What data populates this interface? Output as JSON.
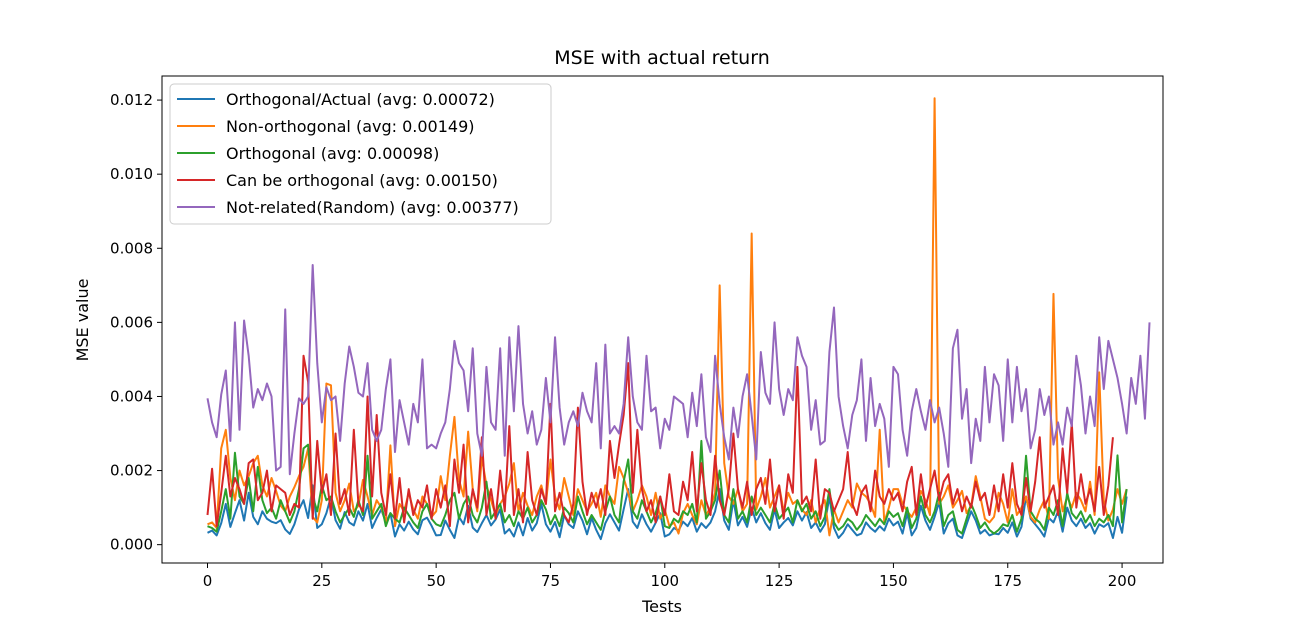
{
  "chart_data": {
    "type": "line",
    "title": "MSE with actual return",
    "xlabel": "Tests",
    "ylabel": "MSE value",
    "xlim": [
      -9.95,
      208.95
    ],
    "ylim": [
      -0.000495,
      0.01265
    ],
    "xticks": [
      0,
      25,
      50,
      75,
      100,
      125,
      150,
      175,
      200
    ],
    "xtick_labels": [
      "0",
      "25",
      "50",
      "75",
      "100",
      "125",
      "150",
      "175",
      "200"
    ],
    "yticks": [
      0,
      0.002,
      0.004,
      0.006,
      0.008,
      0.01,
      0.012
    ],
    "ytick_labels": [
      "0.000",
      "0.002",
      "0.004",
      "0.006",
      "0.008",
      "0.010",
      "0.012"
    ],
    "grid": false,
    "legend_position": "upper-left",
    "series": [
      {
        "name": "Orthogonal/Actual (avg: 0.00072)",
        "color": "#1f77b4",
        "values": [
          0.00032,
          0.00038,
          0.00025,
          0.00058,
          0.0011,
          0.00048,
          0.00085,
          0.0012,
          0.00065,
          0.0014,
          0.00075,
          0.00055,
          0.0009,
          0.0007,
          0.00062,
          0.00058,
          0.00066,
          0.00041,
          0.00029,
          0.00055,
          0.00095,
          0.0012,
          0.00072,
          0.0016,
          0.00045,
          0.00055,
          0.00085,
          0.0013,
          0.00066,
          0.00043,
          0.00088,
          0.0006,
          0.00052,
          0.0009,
          0.00065,
          0.0011,
          0.00045,
          0.00072,
          0.00095,
          0.0006,
          0.00085,
          0.00022,
          0.00055,
          0.00038,
          0.00062,
          0.00041,
          0.00028,
          0.00066,
          0.00073,
          0.00051,
          0.00025,
          0.00026,
          0.00065,
          0.0004,
          0.00018,
          0.00075,
          0.00055,
          0.00105,
          0.00046,
          0.00034,
          0.00058,
          0.0008,
          0.00052,
          0.00068,
          0.00095,
          0.0003,
          0.00042,
          0.00022,
          0.0006,
          0.00025,
          0.00072,
          0.00038,
          0.00058,
          0.0011,
          0.00055,
          0.00035,
          0.00061,
          0.0002,
          0.0008,
          0.00055,
          0.00045,
          0.0009,
          0.00065,
          0.00028,
          0.00072,
          0.0004,
          0.00015,
          0.00058,
          0.00082,
          0.0006,
          0.00038,
          0.00095,
          0.0015,
          0.00062,
          0.00045,
          0.00082,
          0.00055,
          0.00035,
          0.00059,
          0.00085,
          0.00022,
          0.00028,
          0.00045,
          0.00038,
          0.00062,
          0.0005,
          0.00072,
          0.00035,
          0.00058,
          0.00045,
          0.0006,
          0.0009,
          0.0015,
          0.00065,
          0.0004,
          0.0012,
          0.00052,
          0.00075,
          0.00048,
          0.001,
          0.0006,
          0.00085,
          0.00058,
          0.0004,
          0.00095,
          0.00045,
          0.0006,
          0.00072,
          0.00052,
          0.0009,
          0.00065,
          0.00088,
          0.00045,
          0.0006,
          0.00035,
          0.00055,
          0.0013,
          0.00045,
          0.00018,
          0.00032,
          0.00055,
          0.0004,
          0.00025,
          0.0003,
          0.0006,
          0.00045,
          0.00035,
          0.0005,
          0.00038,
          0.0007,
          0.00052,
          0.00062,
          0.0003,
          0.00085,
          0.00025,
          0.00045,
          0.00105,
          0.00065,
          0.0004,
          0.00075,
          0.00115,
          0.0003,
          0.00058,
          0.0007,
          0.00025,
          0.00018,
          0.00055,
          0.0009,
          0.00065,
          0.0003,
          0.0004,
          0.00025,
          0.0003,
          0.00028,
          0.00045,
          0.00032,
          0.0006,
          0.00022,
          0.00048,
          0.0013,
          0.0007,
          0.00055,
          0.0004,
          0.00022,
          0.00072,
          0.0006,
          0.0009,
          0.00035,
          0.001,
          0.00065,
          0.0005,
          0.0007,
          0.00045,
          0.00058,
          0.0003,
          0.00055,
          0.00048,
          0.00058,
          0.00018,
          0.00075,
          0.00032,
          0.0013
        ]
      },
      {
        "name": "Non-orthogonal (avg: 0.00149)",
        "color": "#ff7f0e",
        "values": [
          0.00055,
          0.0006,
          0.00045,
          0.0026,
          0.0031,
          0.0018,
          0.0012,
          0.002,
          0.0016,
          0.00185,
          0.0022,
          0.0024,
          0.0016,
          0.0013,
          0.0018,
          0.00145,
          0.00105,
          0.0009,
          0.0013,
          0.00155,
          0.00185,
          0.0021,
          0.0026,
          0.00075,
          0.0006,
          0.0012,
          0.00435,
          0.0043,
          0.0014,
          0.0009,
          0.0012,
          0.00165,
          0.0009,
          0.00105,
          0.00175,
          0.0013,
          0.0008,
          0.0012,
          0.001,
          0.0006,
          0.00268,
          0.0005,
          0.0011,
          0.0009,
          0.0014,
          0.00095,
          0.0007,
          0.0013,
          0.0011,
          0.00075,
          0.0009,
          0.00185,
          0.0012,
          0.0024,
          0.00345,
          0.00175,
          0.0013,
          0.00305,
          0.0015,
          0.0009,
          0.00235,
          0.0016,
          0.0012,
          0.0008,
          0.0011,
          0.0013,
          0.00165,
          0.0022,
          0.0009,
          0.0014,
          0.00105,
          0.0008,
          0.0013,
          0.0016,
          0.0011,
          0.0023,
          0.0013,
          0.00095,
          0.0018,
          0.0013,
          0.0008,
          0.0015,
          0.0012,
          0.0009,
          0.0011,
          0.0014,
          0.00075,
          0.0016,
          0.0013,
          0.0011,
          0.0021,
          0.0018,
          0.0014,
          0.0009,
          0.0012,
          0.0016,
          0.0013,
          0.0008,
          0.0014,
          0.0007,
          0.00095,
          0.0005,
          0.0006,
          0.0003,
          0.00085,
          0.0011,
          0.0008,
          0.00055,
          0.0012,
          0.0008,
          0.001,
          0.0014,
          0.007,
          0.0022,
          0.0013,
          0.0011,
          0.0015,
          0.0009,
          0.0011,
          0.0084,
          0.00095,
          0.0013,
          0.0018,
          0.001,
          0.0013,
          0.0016,
          0.0009,
          0.0014,
          0.0011,
          0.0012,
          0.00095,
          0.0008,
          0.0012,
          0.0006,
          0.001,
          0.0012,
          0.00025,
          0.00095,
          0.0006,
          0.0009,
          0.0012,
          0.001,
          0.00165,
          0.0014,
          0.0013,
          0.0011,
          0.00075,
          0.0031,
          0.0006,
          0.001,
          0.0015,
          0.0015,
          0.0011,
          0.0009,
          0.00075,
          0.001,
          0.00145,
          0.0012,
          0.0008,
          0.01205,
          0.0011,
          0.0013,
          0.0016,
          0.001,
          0.0012,
          0.00145,
          0.00085,
          0.00105,
          0.00185,
          0.0013,
          0.0007,
          0.0006,
          0.00075,
          0.0014,
          0.0011,
          0.0006,
          0.0015,
          0.0008,
          0.001,
          0.0013,
          0.00075,
          0.0006,
          0.00095,
          0.0012,
          0.0007,
          0.00677,
          0.0018,
          0.0009,
          0.0013,
          0.001,
          0.0014,
          0.0012,
          0.0009,
          0.0017,
          0.0008,
          0.00465,
          0.0012,
          0.00065,
          0.00095,
          0.0015,
          0.0011,
          0.0015
        ]
      },
      {
        "name": "Orthogonal (avg: 0.00098)",
        "color": "#2ca02c",
        "values": [
          0.0005,
          0.00045,
          0.00035,
          0.0009,
          0.0015,
          0.0007,
          0.00248,
          0.0013,
          0.0011,
          0.0018,
          0.0009,
          0.0021,
          0.0012,
          0.00085,
          0.001,
          0.0007,
          0.0012,
          0.0009,
          0.0006,
          0.0009,
          0.0015,
          0.0026,
          0.0027,
          0.0013,
          0.0009,
          0.0016,
          0.0012,
          0.0013,
          0.0009,
          0.0006,
          0.0008,
          0.001,
          0.00075,
          0.0012,
          0.0008,
          0.0024,
          0.0007,
          0.0009,
          0.0011,
          0.0005,
          0.00085,
          0.0007,
          0.0006,
          0.001,
          0.0008,
          0.0006,
          0.00045,
          0.0009,
          0.0011,
          0.0007,
          0.00055,
          0.0005,
          0.0008,
          0.0012,
          0.0014,
          0.0007,
          0.0011,
          0.0013,
          0.0008,
          0.0006,
          0.001,
          0.0017,
          0.0007,
          0.0009,
          0.0011,
          0.0006,
          0.0008,
          0.0005,
          0.0009,
          0.0007,
          0.001,
          0.0006,
          0.0008,
          0.0012,
          0.00095,
          0.00055,
          0.0008,
          0.0005,
          0.001,
          0.00085,
          0.0006,
          0.0013,
          0.0009,
          0.00055,
          0.0008,
          0.0006,
          0.0004,
          0.0009,
          0.0013,
          0.0008,
          0.0006,
          0.0017,
          0.0023,
          0.0009,
          0.0007,
          0.0012,
          0.0009,
          0.0006,
          0.00085,
          0.0013,
          0.0005,
          0.00045,
          0.0007,
          0.0006,
          0.0009,
          0.0008,
          0.0011,
          0.0006,
          0.0028,
          0.0007,
          0.0009,
          0.0012,
          0.002,
          0.0008,
          0.0006,
          0.0015,
          0.0007,
          0.0009,
          0.0006,
          0.0013,
          0.0008,
          0.001,
          0.0008,
          0.0006,
          0.0011,
          0.0007,
          0.00085,
          0.001,
          0.0006,
          0.0012,
          0.0009,
          0.0011,
          0.0007,
          0.0009,
          0.0005,
          0.00075,
          0.0015,
          0.0006,
          0.0004,
          0.0005,
          0.0007,
          0.0006,
          0.0004,
          0.00055,
          0.0008,
          0.00065,
          0.0005,
          0.0007,
          0.00055,
          0.0009,
          0.00075,
          0.00085,
          0.0005,
          0.001,
          0.00045,
          0.0007,
          0.0013,
          0.0008,
          0.0006,
          0.0009,
          0.0014,
          0.0005,
          0.0008,
          0.0009,
          0.0004,
          0.0003,
          0.0007,
          0.0011,
          0.0008,
          0.00045,
          0.0006,
          0.0004,
          0.0003,
          0.0004,
          0.00055,
          0.0005,
          0.0008,
          0.00035,
          0.0007,
          0.0024,
          0.0009,
          0.0007,
          0.0006,
          0.0004,
          0.001,
          0.0008,
          0.0012,
          0.0005,
          0.0014,
          0.00085,
          0.0007,
          0.0009,
          0.0006,
          0.0008,
          0.0005,
          0.0007,
          0.0006,
          0.0008,
          0.0005,
          0.00241,
          0.0006,
          0.0015
        ]
      },
      {
        "name": "Can be orthogonal (avg: 0.00150)",
        "color": "#d62728",
        "values": [
          0.0008,
          0.00205,
          0.0005,
          0.0014,
          0.0024,
          0.0013,
          0.0018,
          0.0015,
          0.0011,
          0.0022,
          0.0023,
          0.0012,
          0.0014,
          0.002,
          0.0009,
          0.0016,
          0.0015,
          0.0014,
          0.0008,
          0.0011,
          0.001,
          0.0051,
          0.0044,
          0.0007,
          0.0028,
          0.0014,
          0.0019,
          0.0008,
          0.003,
          0.0011,
          0.0015,
          0.0008,
          0.0031,
          0.0011,
          0.0009,
          0.004,
          0.0013,
          0.0035,
          0.0014,
          0.0008,
          0.0019,
          0.0007,
          0.0018,
          0.0006,
          0.0015,
          0.0008,
          0.0012,
          0.001,
          0.0016,
          0.0007,
          0.0015,
          0.001,
          0.0016,
          0.0005,
          0.0023,
          0.0014,
          0.0027,
          0.0006,
          0.0015,
          0.001,
          0.0029,
          0.0008,
          0.0015,
          0.0007,
          0.002,
          0.0009,
          0.0032,
          0.0008,
          0.0015,
          0.0006,
          0.0025,
          0.0012,
          0.0008,
          0.0015,
          0.0011,
          0.0038,
          0.0009,
          0.0014,
          0.0008,
          0.0006,
          0.0011,
          0.0037,
          0.0017,
          0.0008,
          0.0014,
          0.001,
          0.0015,
          0.0008,
          0.0028,
          0.0018,
          0.0027,
          0.0035,
          0.0049,
          0.0014,
          0.0031,
          0.0015,
          0.0009,
          0.0012,
          0.0006,
          0.0013,
          0.0008,
          0.0019,
          0.0009,
          0.0008,
          0.0017,
          0.0012,
          0.0025,
          0.0009,
          0.0022,
          0.0012,
          0.0008,
          0.0024,
          0.0012,
          0.0008,
          0.0015,
          0.003,
          0.0015,
          0.001,
          0.0017,
          0.0008,
          0.0015,
          0.0018,
          0.0011,
          0.0023,
          0.0009,
          0.0016,
          0.0007,
          0.0019,
          0.0014,
          0.0048,
          0.0011,
          0.0013,
          0.0009,
          0.0023,
          0.0007,
          0.0015,
          0.0014,
          0.0009,
          0.0012,
          0.0015,
          0.0025,
          0.0011,
          0.0008,
          0.0014,
          0.0016,
          0.0009,
          0.002,
          0.0013,
          0.0011,
          0.0015,
          0.0012,
          0.0014,
          0.0009,
          0.0017,
          0.0021,
          0.0008,
          0.0019,
          0.001,
          0.0015,
          0.002,
          0.0012,
          0.0017,
          0.0019,
          0.0011,
          0.0015,
          0.0009,
          0.0013,
          0.001,
          0.0017,
          0.0012,
          0.0014,
          0.0008,
          0.0016,
          0.0009,
          0.0019,
          0.001,
          0.0022,
          0.0011,
          0.0008,
          0.0018,
          0.0009,
          0.0017,
          0.0029,
          0.001,
          0.0013,
          0.0016,
          0.0008,
          0.0026,
          0.0014,
          0.0033,
          0.001,
          0.0019,
          0.0011,
          0.0015,
          0.0009,
          0.0021,
          0.0008,
          0.0016,
          0.0029
        ]
      },
      {
        "name": "Not-related(Random) (avg: 0.00377)",
        "color": "#9467bd",
        "values": [
          0.00395,
          0.0033,
          0.0029,
          0.00405,
          0.0047,
          0.0028,
          0.006,
          0.0031,
          0.00605,
          0.0051,
          0.0037,
          0.0042,
          0.0039,
          0.00435,
          0.004,
          0.002,
          0.0021,
          0.00635,
          0.0019,
          0.003,
          0.00395,
          0.0038,
          0.004,
          0.00755,
          0.0049,
          0.0033,
          0.00425,
          0.0039,
          0.004,
          0.0028,
          0.00435,
          0.00535,
          0.0048,
          0.0041,
          0.004,
          0.0049,
          0.0031,
          0.0028,
          0.0031,
          0.0042,
          0.005,
          0.0025,
          0.0039,
          0.0033,
          0.0027,
          0.0038,
          0.0033,
          0.005,
          0.0026,
          0.0027,
          0.0026,
          0.003,
          0.0033,
          0.0042,
          0.0055,
          0.0049,
          0.0047,
          0.0036,
          0.0053,
          0.003,
          0.0024,
          0.0048,
          0.0033,
          0.0031,
          0.0053,
          0.0024,
          0.0056,
          0.0036,
          0.0059,
          0.0038,
          0.003,
          0.0036,
          0.0027,
          0.0031,
          0.0045,
          0.0033,
          0.0056,
          0.0037,
          0.0027,
          0.0033,
          0.0036,
          0.0032,
          0.0041,
          0.0036,
          0.0033,
          0.0049,
          0.0026,
          0.0054,
          0.003,
          0.0032,
          0.003,
          0.0038,
          0.0056,
          0.004,
          0.0033,
          0.0031,
          0.0051,
          0.0036,
          0.0037,
          0.0026,
          0.0034,
          0.0031,
          0.004,
          0.0039,
          0.0038,
          0.0029,
          0.0041,
          0.0032,
          0.0046,
          0.0029,
          0.0025,
          0.0051,
          0.0038,
          0.0029,
          0.0023,
          0.0037,
          0.0029,
          0.004,
          0.0046,
          0.0035,
          0.0023,
          0.0052,
          0.0041,
          0.0038,
          0.006,
          0.0042,
          0.0035,
          0.0042,
          0.0039,
          0.0056,
          0.0051,
          0.0048,
          0.0031,
          0.0039,
          0.0027,
          0.0028,
          0.0052,
          0.0064,
          0.004,
          0.0032,
          0.0026,
          0.0035,
          0.0039,
          0.005,
          0.0028,
          0.0045,
          0.0032,
          0.0038,
          0.0034,
          0.0021,
          0.0048,
          0.0046,
          0.0031,
          0.0024,
          0.0036,
          0.0042,
          0.0036,
          0.0031,
          0.0039,
          0.0033,
          0.0037,
          0.003,
          0.0021,
          0.0053,
          0.0058,
          0.0034,
          0.0042,
          0.0022,
          0.0034,
          0.0028,
          0.0048,
          0.0033,
          0.0046,
          0.0043,
          0.0028,
          0.005,
          0.0033,
          0.0048,
          0.0036,
          0.0042,
          0.0026,
          0.0031,
          0.0042,
          0.0035,
          0.004,
          0.0027,
          0.0033,
          0.0027,
          0.0037,
          0.0032,
          0.0051,
          0.0043,
          0.003,
          0.004,
          0.0032,
          0.0056,
          0.0042,
          0.0055,
          0.005,
          0.0045,
          0.0038,
          0.003,
          0.0045,
          0.0038,
          0.0051,
          0.0034,
          0.006
        ]
      }
    ]
  }
}
